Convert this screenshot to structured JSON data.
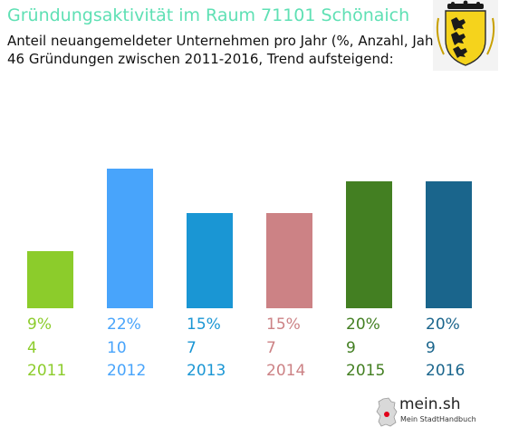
{
  "header": {
    "title": "Gründungsaktivität im Raum 71101 Schönaich",
    "subtitle_line1": "Anteil neuangemeldeter Unternehmen pro Jahr (%, Anzahl, Jahr)",
    "subtitle_line2": "46 Gründungen zwischen 2011-2016, Trend aufsteigend:"
  },
  "crest": {
    "icon": "coat-of-arms-baden-wuerttemberg-icon"
  },
  "logo": {
    "name": "mein.sh",
    "tagline": "Mein StadtHandbuch",
    "icon": "germany-map-icon"
  },
  "colors": {
    "title": "#5fe0b4",
    "brand_red": "#e2001a"
  },
  "chart_data": {
    "type": "bar",
    "categories": [
      "2011",
      "2012",
      "2013",
      "2014",
      "2015",
      "2016"
    ],
    "values": [
      9,
      22,
      15,
      15,
      20,
      20
    ],
    "percent_labels": [
      "9%",
      "22%",
      "15%",
      "15%",
      "20%",
      "20%"
    ],
    "counts": [
      "4",
      "10",
      "7",
      "7",
      "9",
      "9"
    ],
    "colors": [
      "#8ccc2b",
      "#48a4fb",
      "#1a96d4",
      "#cc8285",
      "#437f22",
      "#1a658c"
    ],
    "ylim": [
      0,
      22
    ],
    "grid": false,
    "legend": "none"
  }
}
